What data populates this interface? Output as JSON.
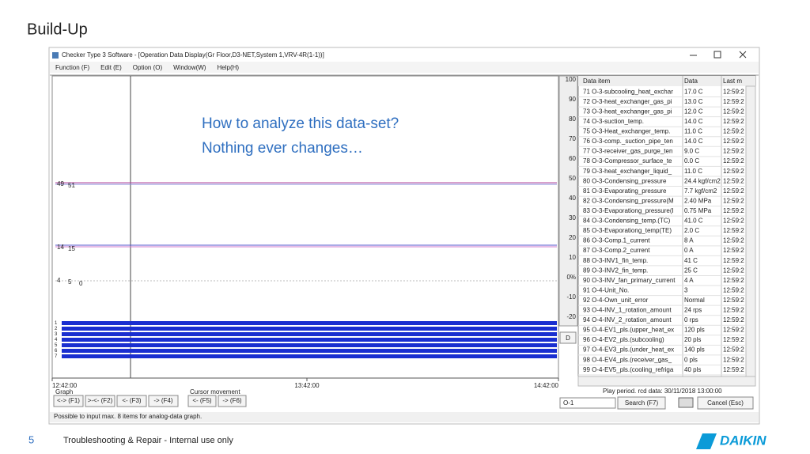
{
  "slide": {
    "title": "Build-Up",
    "callout": [
      "How to analyze this data-set?",
      "Nothing ever changes…"
    ],
    "page_number": "5",
    "footer": "Troubleshooting & Repair - Internal use only",
    "logo": "DAIKIN"
  },
  "window": {
    "title": "Checker Type 3 Software - [Operation Data Display(Gr Floor,D3-NET,System 1,VRV-4R(1-1))]",
    "menu": [
      "Function (F)",
      "Edit (E)",
      "Option (O)",
      "Window(W)",
      "Help(H)"
    ],
    "graph": {
      "scale": [
        "100",
        "90",
        "80",
        "70",
        "60",
        "50",
        "40",
        "30",
        "20",
        "10",
        "0%",
        "-10",
        "-20"
      ],
      "line_labels": [
        [
          "49",
          "51"
        ],
        [
          "14",
          "15"
        ],
        [
          "4",
          "5",
          "0"
        ]
      ],
      "channel_labels": [
        "1",
        "2",
        "3",
        "4",
        "5",
        "6",
        "7"
      ],
      "time_labels": [
        "12:42:00",
        "13:42:00",
        "14:42:00"
      ]
    },
    "controls": {
      "graph_label": "Graph",
      "graph_buttons": [
        "<-> (F1)",
        ">-<- (F2)",
        "<- (F3)",
        "-> (F4)"
      ],
      "cursor_label": "Cursor movement",
      "cursor_buttons": [
        "<- (F5)",
        "-> (F6)"
      ],
      "d_button": "D"
    },
    "table": {
      "headers": [
        "Data item",
        "Data",
        "Last m"
      ],
      "rows": [
        [
          "71 O-3-subcooling_heat_exchar",
          "17.0 C",
          "12:59:2"
        ],
        [
          "72 O-3-heat_exchanger_gas_pi",
          "13.0 C",
          "12:59:2"
        ],
        [
          "73 O-3-heat_exchanger_gas_pi",
          "12.0 C",
          "12:59:2"
        ],
        [
          "74 O-3-suction_temp.",
          "14.0 C",
          "12:59:2"
        ],
        [
          "75 O-3-Heat_exchanger_temp.",
          "11.0 C",
          "12:59:2"
        ],
        [
          "76 O-3-comp._suction_pipe_ten",
          "14.0 C",
          "12:59:2"
        ],
        [
          "77 O-3-receiver_gas_purge_ten",
          "9.0 C",
          "12:59:2"
        ],
        [
          "78 O-3-Compressor_surface_te",
          "0.0 C",
          "12:59:2"
        ],
        [
          "79 O-3-heat_exchanger_liquid_",
          "11.0 C",
          "12:59:2"
        ],
        [
          "80 O-3-Condensing_pressure",
          "24.4 kgf/cm2",
          "12:59:2"
        ],
        [
          "81 O-3-Evaporating_pressure",
          "7.7 kgf/cm2",
          "12:59:2"
        ],
        [
          "82 O-3-Condensing_pressure(M",
          "2.40 MPa",
          "12:59:2"
        ],
        [
          "83 O-3-Evaporationg_pressure(I",
          "0.75 MPa",
          "12:59:2"
        ],
        [
          "84 O-3-Condensing_temp.(TC)",
          "41.0 C",
          "12:59:2"
        ],
        [
          "85 O-3-Evaporationg_temp(TE)",
          "2.0 C",
          "12:59:2"
        ],
        [
          "86 O-3-Comp.1_current",
          "8 A",
          "12:59:2"
        ],
        [
          "87 O-3-Comp.2_current",
          "0 A",
          "12:59:2"
        ],
        [
          "88 O-3-INV1_fin_temp.",
          "41 C",
          "12:59:2"
        ],
        [
          "89 O-3-INV2_fin_temp.",
          "25 C",
          "12:59:2"
        ],
        [
          "90 O-3-INV_fan_primary_current",
          "4 A",
          "12:59:2"
        ],
        [
          "91 O-4-Unit_No.",
          "3",
          "12:59:2"
        ],
        [
          "92 O-4-Own_unit_error",
          "Normal",
          "12:59:2"
        ],
        [
          "93 O-4-INV_1_rotation_amount",
          "24 rps",
          "12:59:2"
        ],
        [
          "94 O-4-INV_2_rotation_amount",
          "0 rps",
          "12:59:2"
        ],
        [
          "95 O-4-EV1_pls.(upper_heat_ex",
          "120 pls",
          "12:59:2"
        ],
        [
          "96 O-4-EV2_pls.(subcooling)",
          "20 pls",
          "12:59:2"
        ],
        [
          "97 O-4-EV3_pls.(under_heat_ex",
          "140 pls",
          "12:59:2"
        ],
        [
          "98 O-4-EV4_pls.(receiver_gas_",
          "0 pls",
          "12:59:2"
        ],
        [
          "99 O-4-EV5_pls.(cooling_refriga",
          "40 pls",
          "12:59:2"
        ]
      ]
    },
    "play_period": "Play period. rcd data: 30/11/2018 13:00:00",
    "selector": "O-1",
    "search": "Search (F7)",
    "cancel": "Cancel (Esc)",
    "status": "Possible to input max. 8 items for analog-data graph."
  }
}
